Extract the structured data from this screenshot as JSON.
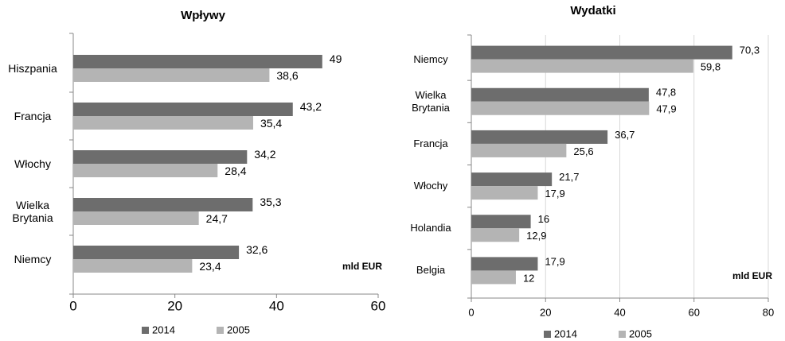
{
  "chart_data": [
    {
      "type": "hbar",
      "title": "Wpływy",
      "unit": "mld EUR",
      "categories": [
        "Hiszpania",
        "Francja",
        "Włochy",
        "Wielka Brytania",
        "Niemcy"
      ],
      "series": [
        {
          "name": "2014",
          "color": "#6d6d6d",
          "values": [
            49,
            43.2,
            34.2,
            35.3,
            32.6
          ],
          "value_labels": [
            "49",
            "43,2",
            "34,2",
            "35,3",
            "32,6"
          ]
        },
        {
          "name": "2005",
          "color": "#b4b4b4",
          "values": [
            38.6,
            35.4,
            28.4,
            24.7,
            23.4
          ],
          "value_labels": [
            "38,6",
            "35,4",
            "28,4",
            "24,7",
            "23,4"
          ]
        }
      ],
      "xlim": [
        0,
        60
      ],
      "xticks": [
        0,
        20,
        40,
        60
      ],
      "grid": false,
      "legend": "bottom"
    },
    {
      "type": "hbar",
      "title": "Wydatki",
      "unit": "mld EUR",
      "categories": [
        "Niemcy",
        "Wielka Brytania",
        "Francja",
        "Włochy",
        "Holandia",
        "Belgia"
      ],
      "series": [
        {
          "name": "2014",
          "color": "#6d6d6d",
          "values": [
            70.3,
            47.8,
            36.7,
            21.7,
            16,
            17.9
          ],
          "value_labels": [
            "70,3",
            "47,8",
            "36,7",
            "21,7",
            "16",
            "17,9"
          ]
        },
        {
          "name": "2005",
          "color": "#b4b4b4",
          "values": [
            59.8,
            47.9,
            25.6,
            17.9,
            12.9,
            12
          ],
          "value_labels": [
            "59,8",
            "47,9",
            "25,6",
            "17,9",
            "12,9",
            "12"
          ]
        }
      ],
      "xlim": [
        0,
        80
      ],
      "xticks": [
        0,
        20,
        40,
        60,
        80
      ],
      "grid": true,
      "legend": "bottom"
    }
  ]
}
